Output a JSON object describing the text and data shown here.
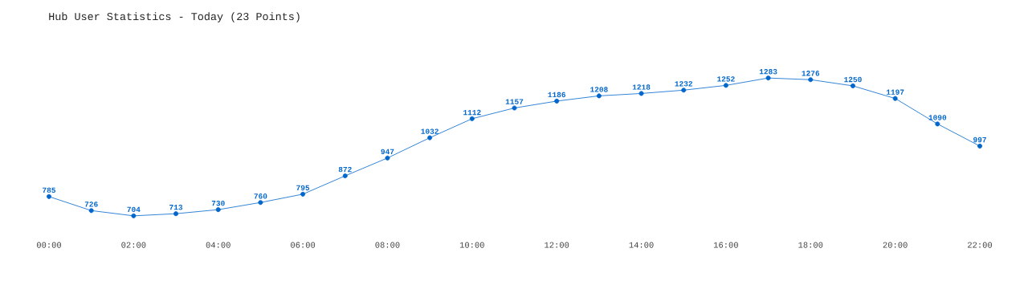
{
  "chart_data": {
    "type": "line",
    "title": "Hub User Statistics - Today (23 Points)",
    "x": [
      0,
      1,
      2,
      3,
      4,
      5,
      6,
      7,
      8,
      9,
      10,
      11,
      12,
      13,
      14,
      15,
      16,
      17,
      18,
      19,
      20,
      21,
      22
    ],
    "xlim": [
      0,
      22
    ],
    "xticks": [
      {
        "value": 0,
        "label": "00:00"
      },
      {
        "value": 2,
        "label": "02:00"
      },
      {
        "value": 4,
        "label": "04:00"
      },
      {
        "value": 6,
        "label": "06:00"
      },
      {
        "value": 8,
        "label": "08:00"
      },
      {
        "value": 10,
        "label": "10:00"
      },
      {
        "value": 12,
        "label": "12:00"
      },
      {
        "value": 14,
        "label": "14:00"
      },
      {
        "value": 16,
        "label": "16:00"
      },
      {
        "value": 18,
        "label": "18:00"
      },
      {
        "value": 20,
        "label": "20:00"
      },
      {
        "value": 22,
        "label": "22:00"
      }
    ],
    "series": [
      {
        "color": "#0066cc",
        "values": [
          785,
          726,
          704,
          713,
          730,
          760,
          795,
          872,
          947,
          1032,
          1112,
          1157,
          1186,
          1208,
          1218,
          1232,
          1252,
          1283,
          1276,
          1250,
          1197,
          1090,
          997
        ]
      }
    ],
    "data_labels": true,
    "marker": "circle",
    "line_style": "solid",
    "tick_labels": "x"
  }
}
